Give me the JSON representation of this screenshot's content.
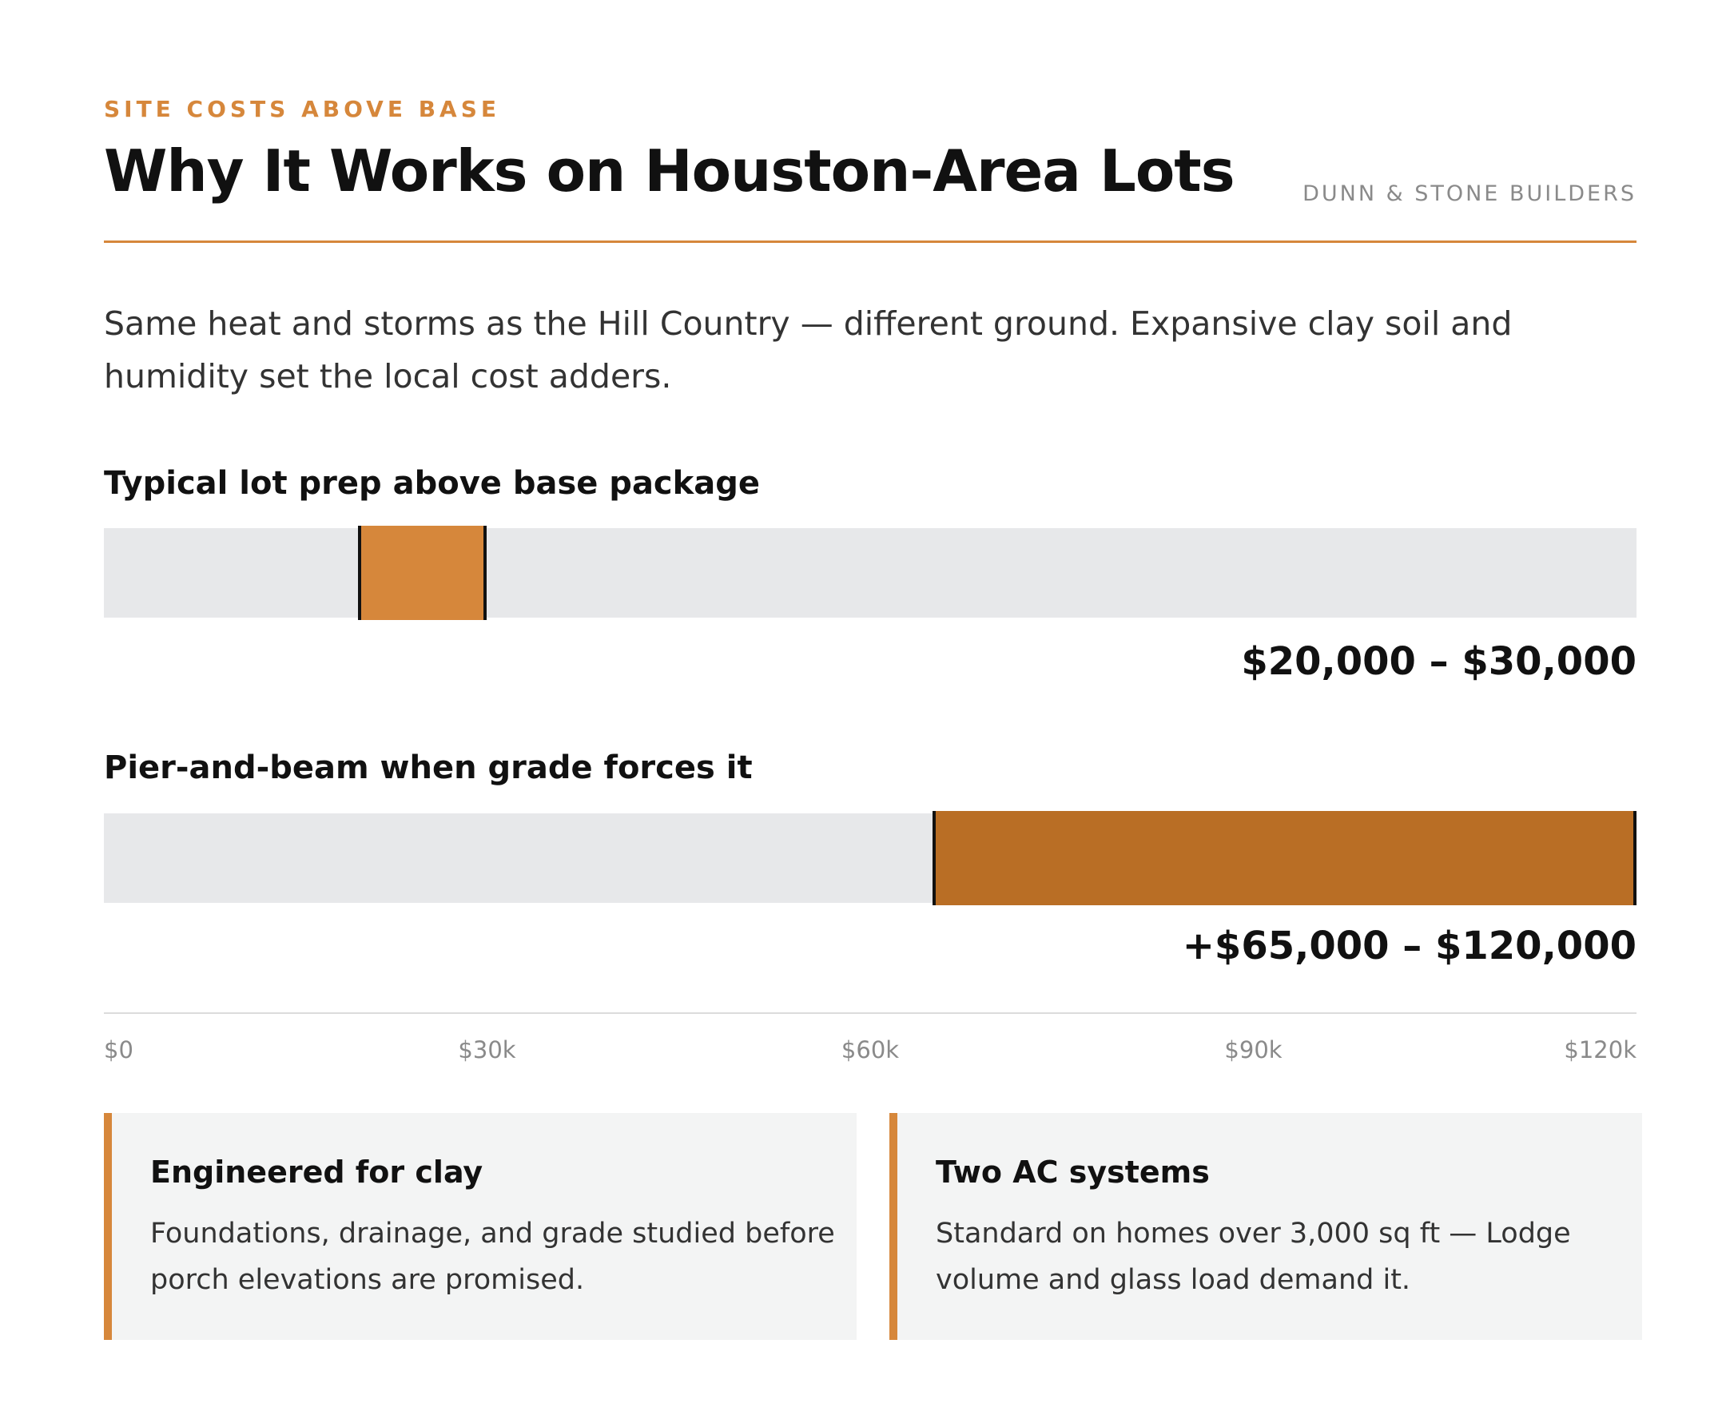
{
  "header": {
    "eyebrow": "SITE COSTS ABOVE BASE",
    "title": "Why It Works on Houston-Area Lots",
    "brand": "DUNN & STONE BUILDERS",
    "accent_color": "#d6873b"
  },
  "intro": {
    "text": "Same heat and storms as the Hill Country — different ground. Expansive clay soil and humidity set the local cost adders."
  },
  "chart_data": {
    "type": "bar",
    "orientation": "horizontal",
    "subtype": "range",
    "title": "",
    "xlabel": "",
    "ylabel": "",
    "xlim": [
      0,
      120000
    ],
    "x_ticks": [
      {
        "value": 0,
        "label": "$0"
      },
      {
        "value": 30000,
        "label": "$30k"
      },
      {
        "value": 60000,
        "label": "$60k"
      },
      {
        "value": 90000,
        "label": "$90k"
      },
      {
        "value": 120000,
        "label": "$120k"
      }
    ],
    "grid": false,
    "series": [
      {
        "label": "Typical lot prep above base package",
        "low": 20000,
        "high": 30000,
        "value_label": "$20,000 – $30,000",
        "color": "#d6873b"
      },
      {
        "label": "Pier-and-beam when grade forces it",
        "low": 65000,
        "high": 120000,
        "value_label": "+$65,000 – $120,000",
        "color": "#b96e25"
      }
    ],
    "track_color": "#e7e8ea"
  },
  "cards": [
    {
      "title": "Engineered for clay",
      "body": "Foundations, drainage, and grade studied before porch elevations are promised."
    },
    {
      "title": "Two AC systems",
      "body": "Standard on homes over 3,000 sq ft — Lodge volume and glass load demand it."
    }
  ]
}
